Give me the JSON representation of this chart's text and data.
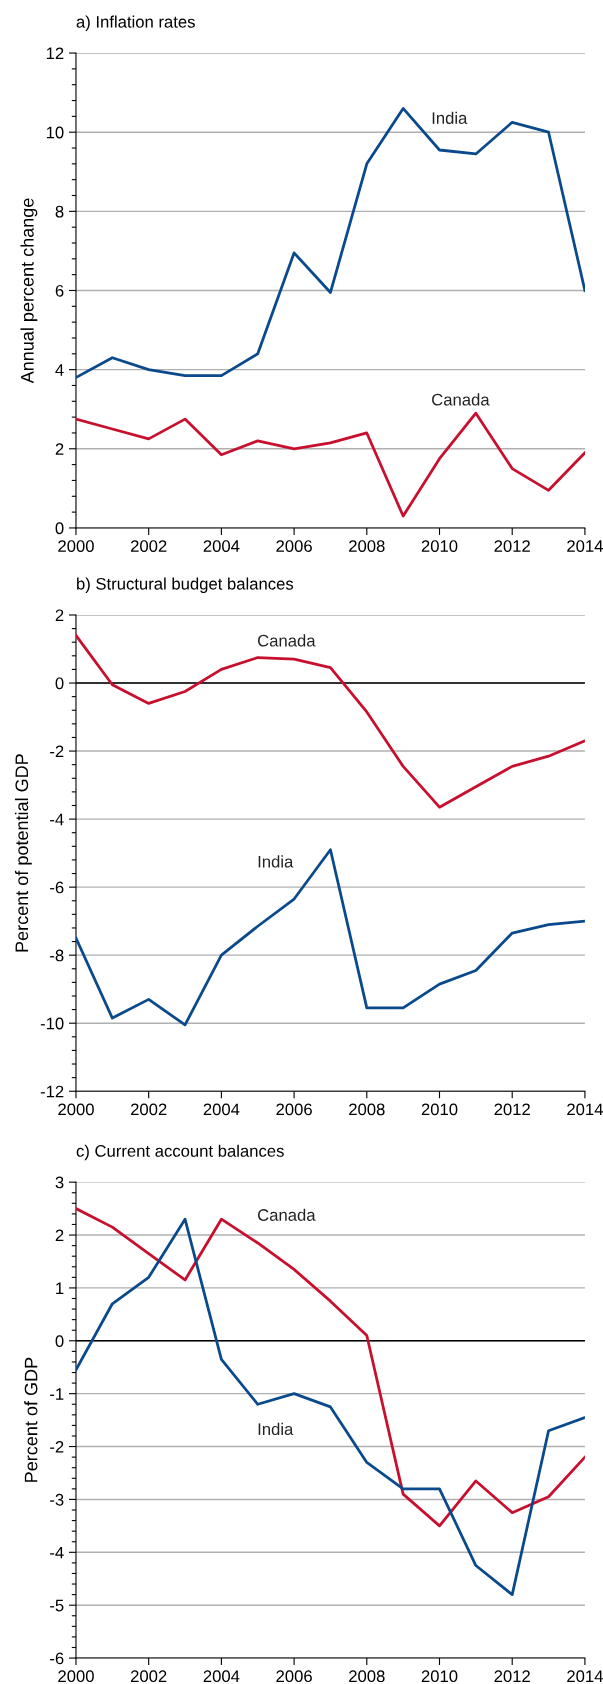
{
  "chart_data": [
    {
      "type": "line",
      "title": "a) Inflation rates",
      "ylabel": "Annual percent change",
      "x": [
        2000,
        2001,
        2002,
        2003,
        2004,
        2005,
        2006,
        2007,
        2008,
        2009,
        2010,
        2011,
        2012,
        2013,
        2014
      ],
      "series": [
        {
          "name": "India",
          "color": "#0a4a8c",
          "values": [
            3.8,
            4.3,
            4.0,
            3.85,
            3.85,
            4.4,
            6.95,
            5.95,
            9.2,
            10.6,
            9.55,
            9.45,
            10.25,
            10.0,
            6.0
          ]
        },
        {
          "name": "Canada",
          "color": "#c8102e",
          "values": [
            2.75,
            2.5,
            2.25,
            2.75,
            1.85,
            2.2,
            2.0,
            2.15,
            2.4,
            0.3,
            1.75,
            2.9,
            1.5,
            0.95,
            1.9
          ]
        }
      ],
      "xlim": [
        2000,
        2014
      ],
      "xticks": [
        2000,
        2002,
        2004,
        2006,
        2008,
        2010,
        2012,
        2014
      ],
      "ylim": [
        0,
        12
      ],
      "yticks": [
        0,
        2,
        4,
        6,
        8,
        10,
        12
      ],
      "grid": "y",
      "line_style": "solid"
    },
    {
      "type": "line",
      "title": "b) Structural budget balances",
      "ylabel": "Percent of potential GDP",
      "x": [
        2000,
        2001,
        2002,
        2003,
        2004,
        2005,
        2006,
        2007,
        2008,
        2009,
        2010,
        2011,
        2012,
        2013,
        2014
      ],
      "series": [
        {
          "name": "Canada",
          "color": "#c8102e",
          "values": [
            1.4,
            -0.05,
            -0.6,
            -0.25,
            0.4,
            0.75,
            0.7,
            0.45,
            -0.85,
            -2.45,
            -3.65,
            -3.05,
            -2.45,
            -2.15,
            -1.7
          ]
        },
        {
          "name": "India",
          "color": "#0a4a8c",
          "values": [
            -7.5,
            -9.85,
            -9.3,
            -10.05,
            -8.0,
            -7.15,
            -6.35,
            -4.9,
            -9.55,
            -9.55,
            -8.85,
            -8.45,
            -7.35,
            -7.1,
            -7.0
          ]
        }
      ],
      "ref_lines": [
        {
          "axis": "y",
          "value": 0,
          "color": "#000000"
        }
      ],
      "xlim": [
        2000,
        2014
      ],
      "xticks": [
        2000,
        2002,
        2004,
        2006,
        2008,
        2010,
        2012,
        2014
      ],
      "ylim": [
        -12,
        2
      ],
      "yticks": [
        -12,
        -10,
        -8,
        -6,
        -4,
        -2,
        0,
        2
      ],
      "grid": "y",
      "line_style": "solid"
    },
    {
      "type": "line",
      "title": "c) Current account balances",
      "ylabel": "Percent of GDP",
      "x": [
        2000,
        2001,
        2002,
        2003,
        2004,
        2005,
        2006,
        2007,
        2008,
        2009,
        2010,
        2011,
        2012,
        2013,
        2014
      ],
      "series": [
        {
          "name": "Canada",
          "color": "#c8102e",
          "values": [
            2.5,
            2.15,
            1.65,
            1.15,
            2.3,
            1.85,
            1.35,
            0.75,
            0.1,
            -2.9,
            -3.5,
            -2.65,
            -3.25,
            -2.95,
            -2.2
          ]
        },
        {
          "name": "India",
          "color": "#0a4a8c",
          "values": [
            -0.55,
            0.7,
            1.2,
            2.3,
            -0.35,
            -1.2,
            -1.0,
            -1.25,
            -2.3,
            -2.8,
            -2.8,
            -4.25,
            -4.8,
            -1.7,
            -1.45
          ]
        }
      ],
      "ref_lines": [
        {
          "axis": "y",
          "value": 0,
          "color": "#000000"
        }
      ],
      "xlim": [
        2000,
        2014
      ],
      "xticks": [
        2000,
        2002,
        2004,
        2006,
        2008,
        2010,
        2012,
        2014
      ],
      "ylim": [
        -6,
        3
      ],
      "yticks": [
        -6,
        -5,
        -4,
        -3,
        -2,
        -1,
        0,
        1,
        2,
        3
      ],
      "grid": "y",
      "line_style": "solid"
    }
  ]
}
